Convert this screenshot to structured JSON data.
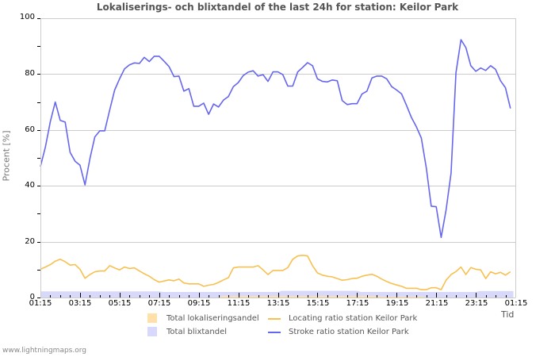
{
  "chart_data": {
    "type": "line",
    "title": "Lokaliserings- och blixtandel of the last 24h for station: Keilor Park",
    "xlabel": "Tid",
    "ylabel": "Procent   [%]",
    "ylim": [
      0,
      100
    ],
    "y_ticks": [
      0,
      20,
      40,
      60,
      80,
      100
    ],
    "x_ticks": [
      "01:15",
      "03:15",
      "05:15",
      "07:15",
      "09:15",
      "11:15",
      "13:15",
      "15:15",
      "17:15",
      "19:15",
      "21:15",
      "23:15",
      "01:15"
    ],
    "grid": true,
    "legend_position": "bottom",
    "colors": {
      "total_locating_area": "#ffe0a8",
      "total_stroke_area": "#d8d8fa",
      "locating_line": "#f8c050",
      "stroke_line": "#6666ee",
      "grid": "#cccccc"
    },
    "series": [
      {
        "name": "Stroke ratio station Keilor Park",
        "type": "line",
        "x_hours": [
          0,
          0.25,
          0.5,
          0.75,
          1,
          1.25,
          1.5,
          1.75,
          2,
          2.25,
          2.5,
          2.75,
          3,
          3.25,
          3.5,
          3.75,
          4,
          4.25,
          4.5,
          4.75,
          5,
          5.25,
          5.5,
          5.75,
          6,
          6.25,
          6.5,
          6.75,
          7,
          7.25,
          7.5,
          7.75,
          8,
          8.25,
          8.5,
          8.75,
          9,
          9.25,
          9.5,
          9.75,
          10,
          10.25,
          10.5,
          10.75,
          11,
          11.25,
          11.5,
          11.75,
          12,
          12.25,
          12.5,
          12.75,
          13,
          13.25,
          13.5,
          13.75,
          14,
          14.25,
          14.5,
          14.75,
          15,
          15.25,
          15.5,
          15.75,
          16,
          16.25,
          16.5,
          16.75,
          17,
          17.25,
          17.5,
          17.75,
          18,
          18.25,
          18.5,
          18.75,
          19,
          19.25,
          19.5,
          19.75,
          20,
          20.25,
          20.5,
          20.75,
          21,
          21.25,
          21.5,
          21.75,
          22,
          22.25,
          22.5,
          22.75,
          23,
          23.25,
          23.5,
          23.75
        ],
        "values": [
          46.9,
          53.8,
          63,
          70,
          63.4,
          62.8,
          52,
          48.8,
          47.4,
          40.3,
          49.7,
          57.5,
          59.7,
          59.7,
          67.2,
          74.3,
          78.3,
          81.9,
          83.3,
          84,
          83.8,
          86,
          84.5,
          86.4,
          86.4,
          84.6,
          82.7,
          79.1,
          79.3,
          73.9,
          74.8,
          68.5,
          68.5,
          69.6,
          65.6,
          69.3,
          68.2,
          70.7,
          72,
          75.5,
          77,
          79.5,
          80.7,
          81.2,
          79.3,
          79.8,
          77.4,
          80.8,
          80.8,
          79.8,
          75.7,
          75.7,
          80.8,
          82.4,
          84.1,
          83,
          78.3,
          77.4,
          77.2,
          77.9,
          77.6,
          70.5,
          69.1,
          69.4,
          69.4,
          72.9,
          73.9,
          78.6,
          79.3,
          79.3,
          78.3,
          75.5,
          74.3,
          72.9,
          68.8,
          64.4,
          61.1,
          57.1,
          46.4,
          32.7,
          32.5,
          21.5,
          31.3,
          44.5,
          80.5,
          92.3,
          89.5,
          83,
          81,
          82.2,
          81.3,
          83,
          81.7,
          77.6,
          75.1,
          67.7
        ]
      },
      {
        "name": "Locating ratio station Keilor Park",
        "type": "line",
        "x_hours": [
          0,
          0.25,
          0.5,
          0.75,
          1,
          1.25,
          1.5,
          1.75,
          2,
          2.25,
          2.5,
          2.75,
          3,
          3.25,
          3.5,
          3.75,
          4,
          4.25,
          4.5,
          4.75,
          5,
          5.25,
          5.5,
          5.75,
          6,
          6.25,
          6.5,
          6.75,
          7,
          7.25,
          7.5,
          7.75,
          8,
          8.25,
          8.5,
          8.75,
          9,
          9.25,
          9.5,
          9.75,
          10,
          10.25,
          10.5,
          10.75,
          11,
          11.25,
          11.5,
          11.75,
          12,
          12.25,
          12.5,
          12.75,
          13,
          13.25,
          13.5,
          13.75,
          14,
          14.25,
          14.5,
          14.75,
          15,
          15.25,
          15.5,
          15.75,
          16,
          16.25,
          16.5,
          16.75,
          17,
          17.25,
          17.5,
          17.75,
          18,
          18.25,
          18.5,
          18.75,
          19,
          19.25,
          19.5,
          19.75,
          20,
          20.25,
          20.5,
          20.75,
          21,
          21.25,
          21.5,
          21.75,
          22,
          22.25,
          22.5,
          22.75,
          23,
          23.25,
          23.5,
          23.75
        ],
        "values": [
          10.1,
          10.9,
          11.8,
          13,
          13.7,
          12.8,
          11.6,
          11.8,
          10.1,
          6.9,
          8.2,
          9.2,
          9.5,
          9.5,
          11.4,
          10.6,
          9.9,
          10.9,
          10.4,
          10.6,
          9.5,
          8.5,
          7.6,
          6.4,
          5.5,
          5.9,
          6.3,
          6,
          6.6,
          5.2,
          4.9,
          4.9,
          4.9,
          4,
          4.4,
          4.7,
          5.4,
          6.3,
          7.1,
          10.6,
          10.9,
          10.9,
          10.9,
          10.9,
          11.4,
          9.9,
          8.2,
          9.7,
          9.7,
          9.7,
          10.7,
          13.7,
          14.9,
          15.1,
          14.9,
          11.4,
          8.8,
          8,
          7.6,
          7.4,
          6.8,
          6.2,
          6.4,
          6.8,
          6.9,
          7.6,
          8,
          8.3,
          7.6,
          6.6,
          5.7,
          5,
          4.5,
          4,
          3.3,
          3.3,
          3.3,
          2.8,
          2.8,
          3.5,
          3.5,
          2.8,
          6.2,
          8.2,
          9.3,
          10.9,
          8.2,
          10.7,
          10.1,
          9.9,
          6.8,
          9.2,
          8.5,
          9,
          8,
          9.2
        ]
      },
      {
        "name": "Total blixtandel",
        "type": "area",
        "x_hours": [
          0,
          6,
          6.2,
          12,
          12.2,
          16,
          16.2,
          22,
          22.2,
          23.9
        ],
        "values": [
          2.2,
          2.2,
          2.0,
          2.0,
          2.4,
          2.4,
          2.0,
          2.0,
          2.3,
          2.3
        ]
      },
      {
        "name": "Total lokaliseringsandel",
        "type": "area",
        "x_hours": [
          0,
          9,
          9.2,
          17,
          17.2,
          19.3,
          19.5,
          23.9
        ],
        "values": [
          0,
          0,
          0.5,
          0.5,
          0.3,
          0.3,
          0,
          0
        ]
      }
    ]
  },
  "header": {
    "title": "Lokaliserings- och blixtandel of the last 24h for station: Keilor Park"
  },
  "axes": {
    "ylabel": "Procent   [%]",
    "xlabel": "Tid",
    "y_tick_labels": [
      "0",
      "20",
      "40",
      "60",
      "80",
      "100"
    ],
    "x_tick_labels": [
      "01:15",
      "03:15",
      "05:15",
      "07:15",
      "09:15",
      "11:15",
      "13:15",
      "15:15",
      "17:15",
      "19:15",
      "21:15",
      "23:15",
      "01:15"
    ]
  },
  "legend": {
    "total_locating": "Total lokaliseringsandel",
    "total_stroke": "Total blixtandel",
    "locating_station": "Locating ratio station Keilor Park",
    "stroke_station": "Stroke ratio station Keilor Park"
  },
  "footer": {
    "text": "www.lightningmaps.org"
  }
}
